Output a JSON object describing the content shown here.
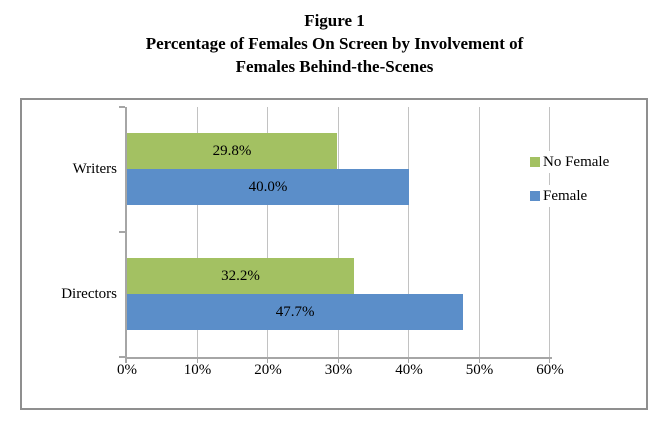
{
  "title": {
    "line1": "Figure 1",
    "line2": "Percentage of Females On Screen by Involvement of",
    "line3": "Females Behind-the-Scenes"
  },
  "chart_data": {
    "type": "bar",
    "orientation": "horizontal",
    "title": "Figure 1 Percentage of Females On Screen by Involvement of Females Behind-the-Scenes",
    "categories": [
      "Writers",
      "Directors"
    ],
    "series": [
      {
        "name": "No Female",
        "color": "#a3c162",
        "values": [
          29.8,
          32.2
        ],
        "labels": [
          "29.8%",
          "32.2%"
        ]
      },
      {
        "name": "Female",
        "color": "#5b8ec9",
        "values": [
          40.0,
          47.7
        ],
        "labels": [
          "40.0%",
          "47.7%"
        ]
      }
    ],
    "xlim": [
      0,
      60
    ],
    "x_tick_labels": [
      "0%",
      "10%",
      "20%",
      "30%",
      "40%",
      "50%",
      "60%"
    ],
    "grid": true,
    "legend_position": "right",
    "value_labels_inside_bars": true
  }
}
